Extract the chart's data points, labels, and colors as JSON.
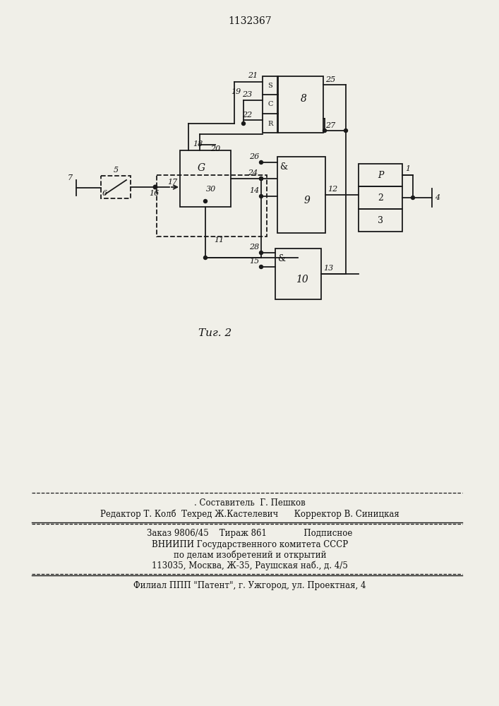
{
  "title": "1132367",
  "fig_label": "Τиг. 2",
  "background_color": "#f0efe8",
  "line_color": "#1a1a1a",
  "footer_lines": [
    ". Составитель  Г. Пешков",
    "Редактор Т. Колб  Техред Ж.Кастелевич      Корректор В. Синицкая",
    "Заказ 9806/45    Тираж 861              Подписное",
    "ВНИИПИ Государственного комитета СССР",
    "по делам изобретений и открытий",
    "113035, Москва, Ж-35, Раушская наб., д. 4/5",
    "Филиал ППП \"Патент\", г. Ужгород, ул. Проектная, 4"
  ]
}
